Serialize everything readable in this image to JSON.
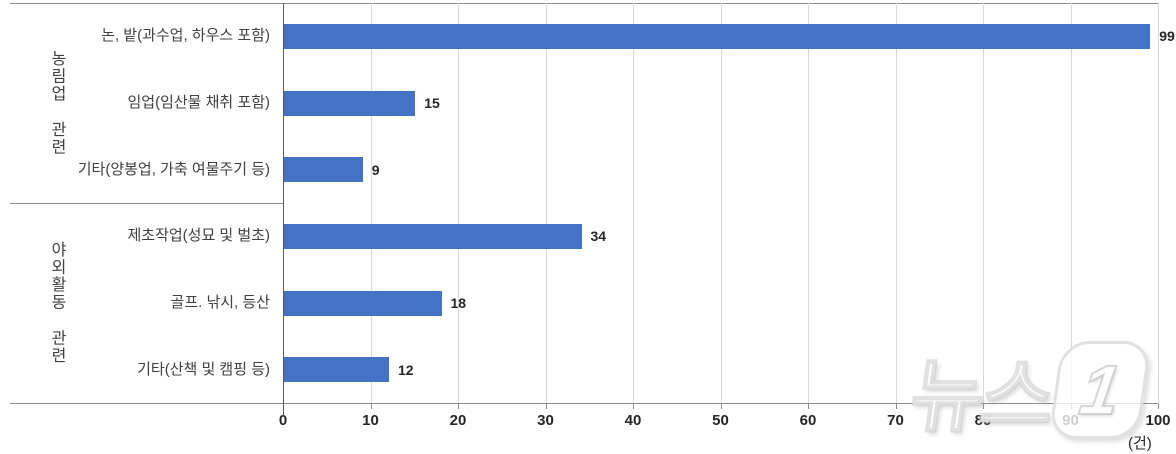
{
  "chart_data": {
    "type": "bar",
    "orientation": "horizontal",
    "title": "",
    "xlabel": "",
    "ylabel": "",
    "unit_label": "(건)",
    "xlim": [
      0,
      100
    ],
    "xticks": [
      0,
      10,
      20,
      30,
      40,
      50,
      60,
      70,
      80,
      90,
      100
    ],
    "grid": true,
    "bar_color": "#4472C4",
    "groups": [
      {
        "label": "농림업 관련",
        "items": [
          {
            "category": "논, 밭(과수업, 하우스 포함)",
            "value": 99
          },
          {
            "category": "임업(임산물 채취 포함)",
            "value": 15
          },
          {
            "category": "기타(양봉업, 가축 여물주기 등)",
            "value": 9
          }
        ]
      },
      {
        "label": "야외활동 관련",
        "items": [
          {
            "category": "제초작업(성묘 및 벌초)",
            "value": 34
          },
          {
            "category": "골프. 낚시, 등산",
            "value": 18
          },
          {
            "category": "기타(산책 및 캠핑 등)",
            "value": 12
          }
        ]
      }
    ],
    "categories": [
      "논, 밭(과수업, 하우스 포함)",
      "임업(임산물 채취 포함)",
      "기타(양봉업, 가축 여물주기 등)",
      "제초작업(성묘 및 벌초)",
      "골프. 낚시, 등산",
      "기타(산책 및 캠핑 등)"
    ],
    "values": [
      99,
      15,
      9,
      34,
      18,
      12
    ]
  },
  "watermark": {
    "news": "뉴스",
    "one": "1"
  }
}
